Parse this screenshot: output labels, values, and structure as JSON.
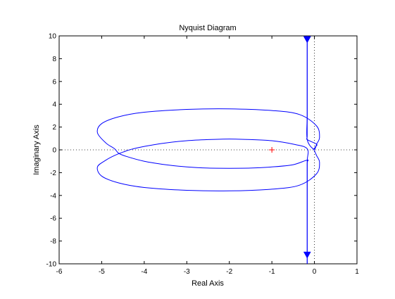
{
  "chart_data": {
    "type": "line",
    "title": "Nyquist Diagram",
    "xlabel": "Real Axis",
    "ylabel": "Imaginary Axis",
    "xlim": [
      -6,
      1
    ],
    "ylim": [
      -10,
      10
    ],
    "x_ticks": [
      -6,
      -5,
      -4,
      -3,
      -2,
      -1,
      0,
      1
    ],
    "y_ticks": [
      -10,
      -8,
      -6,
      -4,
      -2,
      0,
      2,
      4,
      6,
      8,
      10
    ],
    "grid": false,
    "critical_point": {
      "x": -1,
      "y": 0,
      "marker": "+",
      "color": "#ff0000"
    },
    "reference_lines": {
      "x": 0,
      "y": 0,
      "style": "dotted",
      "color": "#000000"
    },
    "series": [
      {
        "color": "#0000ff",
        "points": [
          [
            -0.17,
            10
          ],
          [
            -0.17,
            6
          ],
          [
            -0.17,
            3
          ],
          [
            -0.17,
            1.2
          ],
          [
            -0.17,
            0.9
          ],
          [
            0.05,
            0.5
          ],
          [
            0.02,
            0.25
          ],
          [
            -0.01,
            0.05
          ],
          [
            0.02,
            -0.25
          ],
          [
            0.05,
            -0.5
          ],
          [
            0.12,
            -1.1
          ],
          [
            0.05,
            -2.1
          ],
          [
            -0.35,
            -3.1
          ],
          [
            -1.0,
            -3.45
          ],
          [
            -2.0,
            -3.6
          ],
          [
            -3.0,
            -3.55
          ],
          [
            -4.0,
            -3.3
          ],
          [
            -4.6,
            -2.9
          ],
          [
            -5.0,
            -2.3
          ],
          [
            -5.1,
            -1.5
          ],
          [
            -4.9,
            -0.9
          ],
          [
            -4.7,
            -0.5
          ],
          [
            -4.5,
            -0.2
          ],
          [
            -4.3,
            0.05
          ],
          [
            -4.0,
            0.3
          ],
          [
            -3.5,
            0.6
          ],
          [
            -3.0,
            0.8
          ],
          [
            -2.5,
            0.9
          ],
          [
            -2.0,
            0.95
          ],
          [
            -1.5,
            0.9
          ],
          [
            -1.0,
            0.8
          ],
          [
            -0.5,
            0.5
          ],
          [
            -0.17,
            0.1
          ],
          [
            -0.17,
            -1
          ],
          [
            -0.17,
            -3
          ],
          [
            -0.17,
            -6
          ],
          [
            -0.17,
            -10
          ]
        ]
      },
      {
        "color": "#0000ff",
        "points": [
          [
            -0.17,
            -10
          ],
          [
            -0.17,
            -6
          ],
          [
            -0.17,
            -3
          ],
          [
            -0.17,
            -1.2
          ],
          [
            -0.17,
            -0.9
          ],
          [
            -0.5,
            -1.3
          ],
          [
            -1.0,
            -1.5
          ],
          [
            -1.5,
            -1.6
          ],
          [
            -2.0,
            -1.62
          ],
          [
            -2.5,
            -1.6
          ],
          [
            -3.0,
            -1.5
          ],
          [
            -3.5,
            -1.3
          ],
          [
            -4.0,
            -1.0
          ],
          [
            -4.4,
            -0.6
          ],
          [
            -4.6,
            -0.3
          ],
          [
            -4.7,
            0.1
          ],
          [
            -4.9,
            0.6
          ],
          [
            -5.1,
            1.5
          ],
          [
            -5.0,
            2.3
          ],
          [
            -4.6,
            2.9
          ],
          [
            -4.0,
            3.3
          ],
          [
            -3.0,
            3.55
          ],
          [
            -2.0,
            3.6
          ],
          [
            -1.0,
            3.45
          ],
          [
            -0.35,
            3.1
          ],
          [
            0.05,
            2.1
          ],
          [
            0.12,
            1.1
          ],
          [
            0.05,
            0.5
          ],
          [
            -0.01,
            0.05
          ],
          [
            -0.17,
            0.9
          ],
          [
            -0.17,
            3
          ],
          [
            -0.17,
            6
          ],
          [
            -0.17,
            10
          ]
        ]
      }
    ],
    "arrows": [
      {
        "x": -0.17,
        "y": 9.7,
        "direction": "down",
        "color": "#0000ff"
      },
      {
        "x": -0.17,
        "y": -9.2,
        "direction": "down",
        "color": "#0000ff"
      }
    ]
  }
}
